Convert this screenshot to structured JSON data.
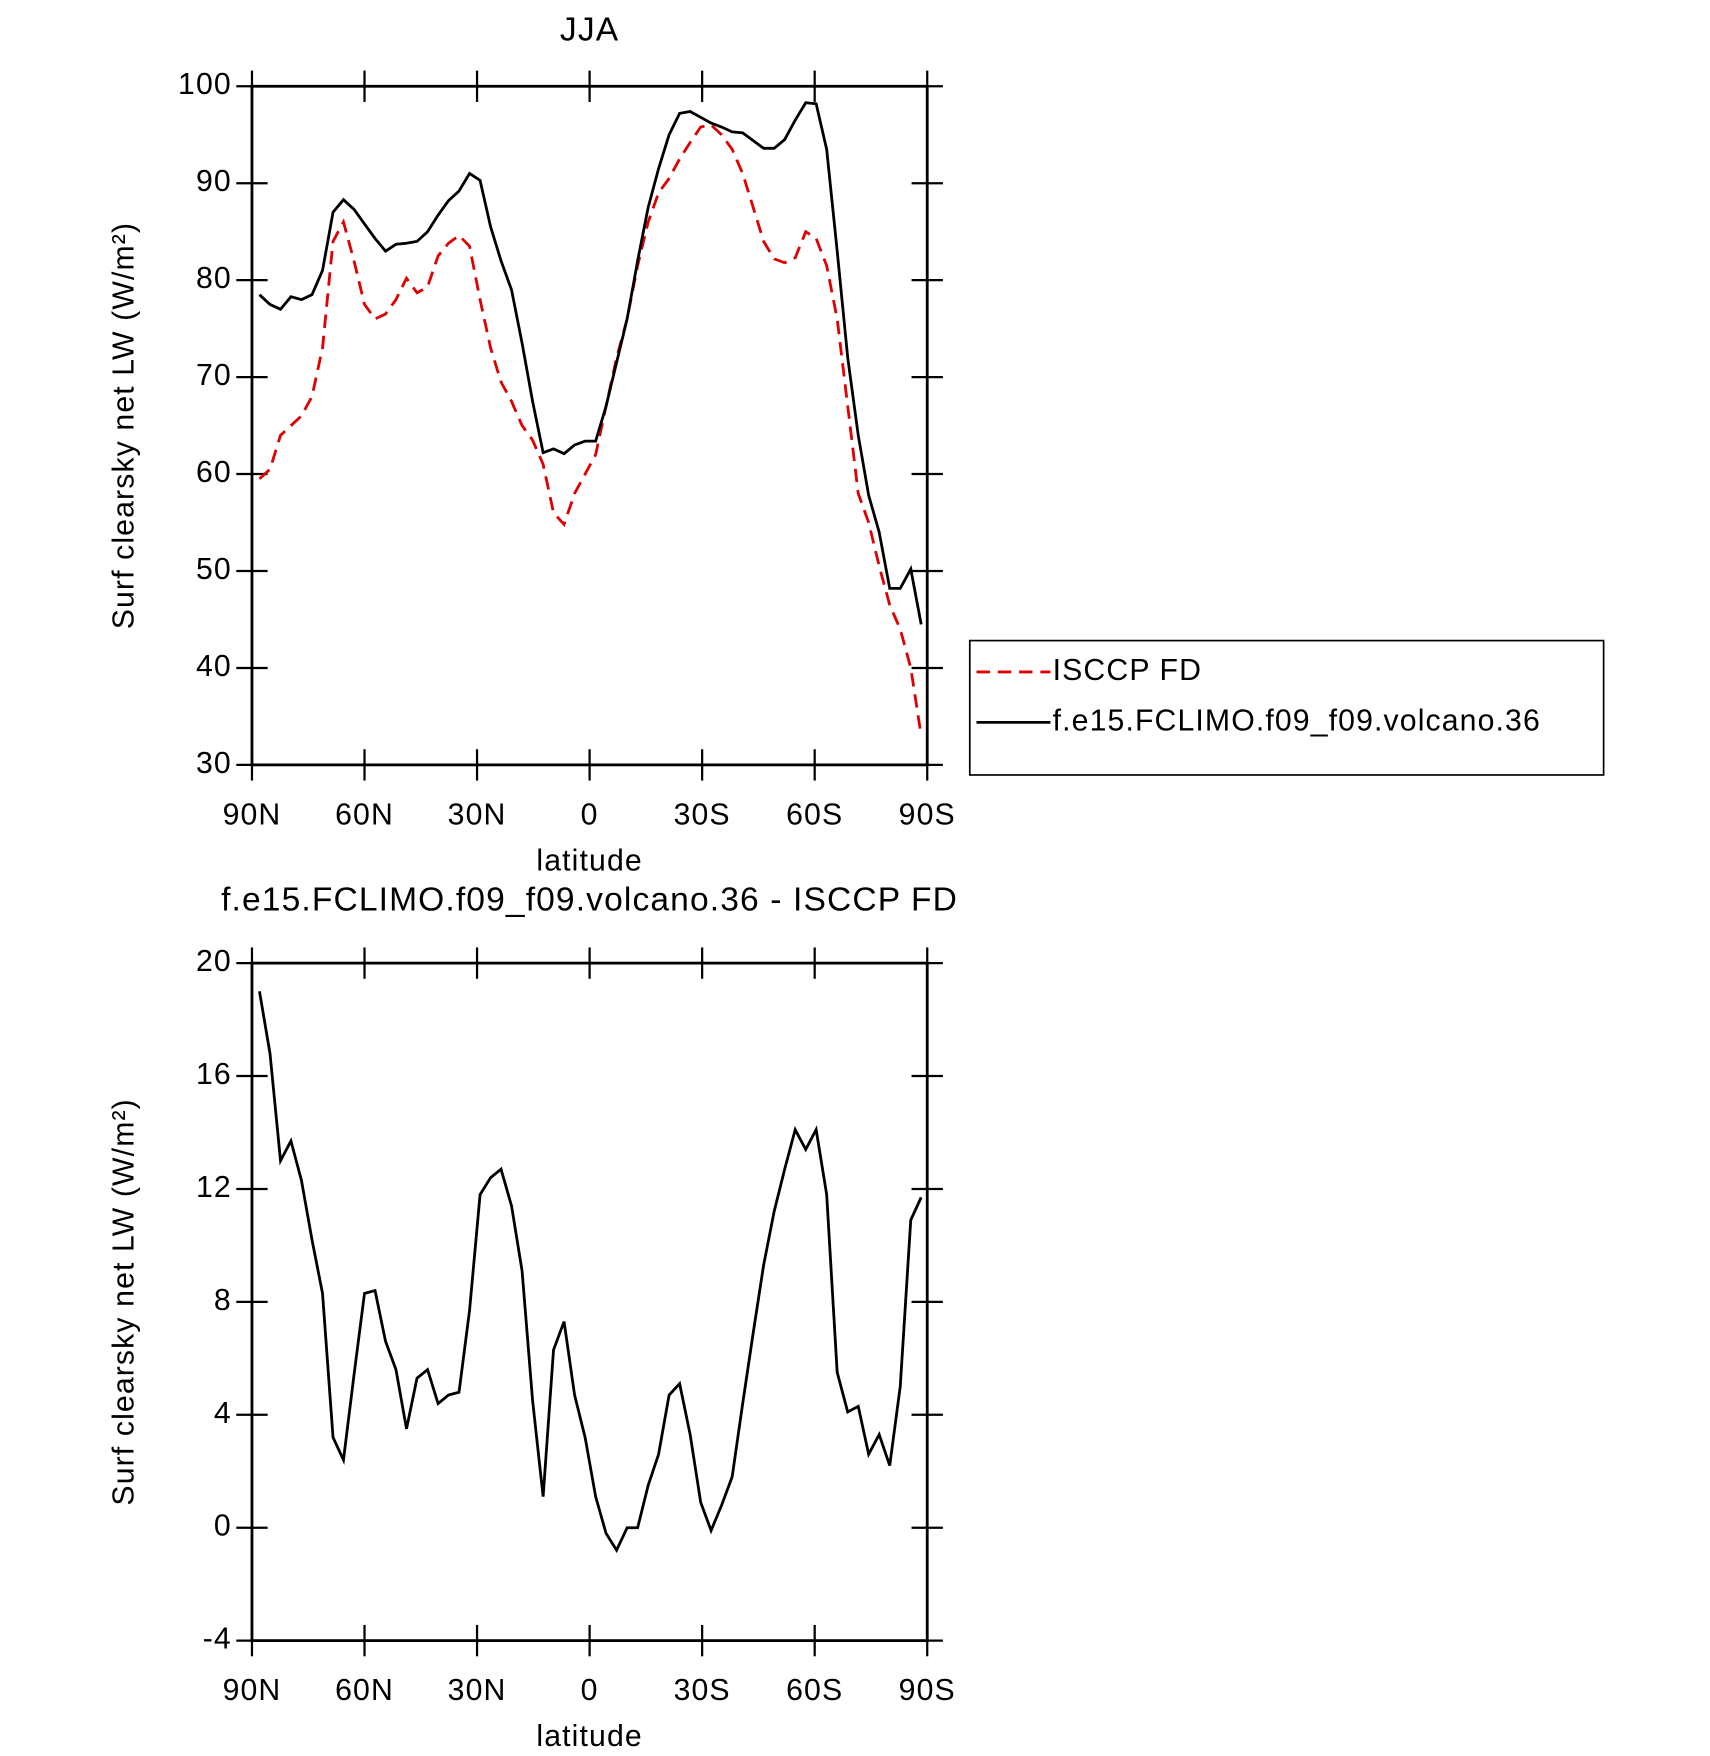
{
  "chart_data": [
    {
      "type": "line",
      "title": "JJA",
      "xlabel": "latitude",
      "ylabel": "Surf clearsky net LW (W/m²)",
      "xlim": [
        90,
        -90
      ],
      "xticks": [
        {
          "value": 90,
          "label": "90N"
        },
        {
          "value": 60,
          "label": "60N"
        },
        {
          "value": 30,
          "label": "30N"
        },
        0,
        {
          "value": -30,
          "label": "30S"
        },
        {
          "value": -60,
          "label": "60S"
        },
        {
          "value": -90,
          "label": "90S"
        }
      ],
      "ylim": [
        30,
        100
      ],
      "yticks": [
        30,
        40,
        50,
        60,
        70,
        80,
        90,
        100
      ],
      "legend": "right",
      "x": [
        88,
        85.2,
        82.4,
        79.6,
        76.8,
        74,
        71.2,
        68.4,
        65.6,
        62.8,
        60,
        57.2,
        54.4,
        51.6,
        48.8,
        46,
        43.2,
        40.4,
        37.6,
        34.8,
        32,
        29.2,
        26.4,
        23.6,
        20.8,
        18,
        15.2,
        12.4,
        9.6,
        6.8,
        4,
        1.2,
        -1.6,
        -4.4,
        -7.2,
        -10,
        -12.8,
        -15.6,
        -18.4,
        -21.2,
        -24,
        -26.8,
        -29.6,
        -32.4,
        -35.2,
        -38,
        -40.8,
        -43.6,
        -46.4,
        -49.2,
        -52,
        -54.8,
        -57.6,
        -60.4,
        -63.2,
        -66,
        -68.8,
        -71.6,
        -74.4,
        -77.2,
        -80,
        -82.8,
        -85.6,
        -88.4
      ],
      "series": [
        {
          "name": "ISCCP FD",
          "color": "#e00000",
          "dash": "dashed",
          "values": [
            59.5,
            60.5,
            64,
            65,
            66,
            68,
            73,
            84,
            86,
            82,
            77.5,
            76,
            76.5,
            78,
            80.2,
            78.7,
            79.3,
            82.5,
            83.8,
            84.6,
            83.5,
            78,
            73,
            69.5,
            67.5,
            65,
            63.5,
            61,
            56,
            54.8,
            58,
            60,
            62,
            67,
            72,
            76,
            81.5,
            86,
            89,
            90.5,
            92.5,
            94.2,
            95.8,
            96,
            95,
            93.5,
            91,
            87.5,
            84,
            82.2,
            81.8,
            82.3,
            85,
            84.3,
            81.5,
            76,
            67,
            58,
            55,
            50.5,
            46.5,
            44,
            40,
            33
          ]
        },
        {
          "name": "f.e15.FCLIMO.f09_f09.volcano.36",
          "color": "#000000",
          "dash": "solid",
          "values": [
            78.5,
            77.5,
            77,
            78.3,
            78,
            78.5,
            81,
            87,
            88.3,
            87.3,
            85.8,
            84.3,
            83,
            83.7,
            83.8,
            84,
            85,
            86.7,
            88.2,
            89.2,
            91,
            90.3,
            85.5,
            82,
            79,
            73.5,
            67.5,
            62.2,
            62.6,
            62.1,
            63,
            63.4,
            63.4,
            67,
            71.5,
            76,
            82,
            87.5,
            91.5,
            95,
            97.2,
            97.4,
            96.8,
            96.2,
            95.8,
            95.3,
            95.2,
            94.4,
            93.6,
            93.6,
            94.5,
            96.5,
            98.3,
            98.2,
            93.5,
            83,
            72,
            64,
            57.8,
            54,
            48.2,
            48.2,
            50.2,
            44.5
          ]
        }
      ]
    },
    {
      "type": "line",
      "title": "f.e15.FCLIMO.f09_f09.volcano.36 - ISCCP FD",
      "xlabel": "latitude",
      "ylabel": "Surf clearsky net LW (W/m²)",
      "xlim": [
        90,
        -90
      ],
      "xticks": [
        {
          "value": 90,
          "label": "90N"
        },
        {
          "value": 60,
          "label": "60N"
        },
        {
          "value": 30,
          "label": "30N"
        },
        0,
        {
          "value": -30,
          "label": "30S"
        },
        {
          "value": -60,
          "label": "60S"
        },
        {
          "value": -90,
          "label": "90S"
        }
      ],
      "ylim": [
        -4,
        20
      ],
      "yticks": [
        -4,
        0,
        4,
        8,
        12,
        16,
        20
      ],
      "color": "#000000",
      "x": [
        88,
        85.2,
        82.4,
        79.6,
        76.8,
        74,
        71.2,
        68.4,
        65.6,
        62.8,
        60,
        57.2,
        54.4,
        51.6,
        48.8,
        46,
        43.2,
        40.4,
        37.6,
        34.8,
        32,
        29.2,
        26.4,
        23.6,
        20.8,
        18,
        15.2,
        12.4,
        9.6,
        6.8,
        4,
        1.2,
        -1.6,
        -4.4,
        -7.2,
        -10,
        -12.8,
        -15.6,
        -18.4,
        -21.2,
        -24,
        -26.8,
        -29.6,
        -32.4,
        -35.2,
        -38,
        -40.8,
        -43.6,
        -46.4,
        -49.2,
        -52,
        -54.8,
        -57.6,
        -60.4,
        -63.2,
        -66,
        -68.8,
        -71.6,
        -74.4,
        -77.2,
        -80,
        -82.8,
        -85.6,
        -88.4
      ],
      "values": [
        19,
        16.8,
        13,
        13.7,
        12.3,
        10.2,
        8.3,
        3.2,
        2.4,
        5.4,
        8.3,
        8.4,
        6.6,
        5.6,
        3.5,
        5.3,
        5.6,
        4.4,
        4.7,
        4.8,
        7.7,
        11.8,
        12.4,
        12.7,
        11.4,
        9.1,
        4.5,
        1.1,
        6.3,
        7.3,
        4.7,
        3.2,
        1.1,
        -0.2,
        -0.8,
        0,
        0,
        1.5,
        2.6,
        4.7,
        5.1,
        3.3,
        0.9,
        -0.1,
        0.8,
        1.8,
        4.4,
        6.9,
        9.3,
        11.2,
        12.7,
        14.1,
        13.4,
        14.1,
        11.8,
        5.5,
        4.1,
        4.3,
        2.6,
        3.3,
        2.2,
        5,
        10.9,
        11.7
      ]
    }
  ]
}
